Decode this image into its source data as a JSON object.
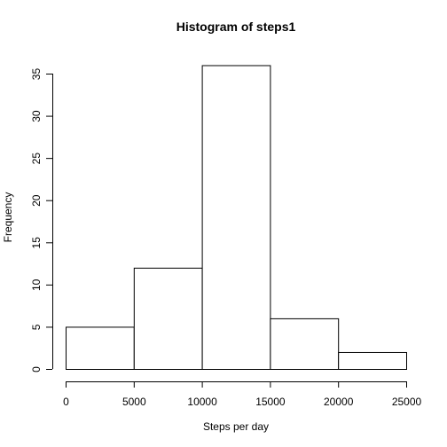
{
  "chart_data": {
    "type": "bar",
    "title": "Histogram of steps1",
    "xlabel": "Steps per day",
    "ylabel": "Frequency",
    "bins": [
      {
        "start": 0,
        "end": 5000,
        "value": 5
      },
      {
        "start": 5000,
        "end": 10000,
        "value": 12
      },
      {
        "start": 10000,
        "end": 15000,
        "value": 36
      },
      {
        "start": 15000,
        "end": 20000,
        "value": 6
      },
      {
        "start": 20000,
        "end": 25000,
        "value": 2
      }
    ],
    "xlim": [
      0,
      25000
    ],
    "ylim": [
      0,
      35
    ],
    "xticks": [
      0,
      5000,
      10000,
      15000,
      20000,
      25000
    ],
    "yticks": [
      0,
      5,
      10,
      15,
      20,
      25,
      30,
      35
    ],
    "grid": false,
    "bar_fill": "#ffffff",
    "bar_stroke": "#000000"
  }
}
